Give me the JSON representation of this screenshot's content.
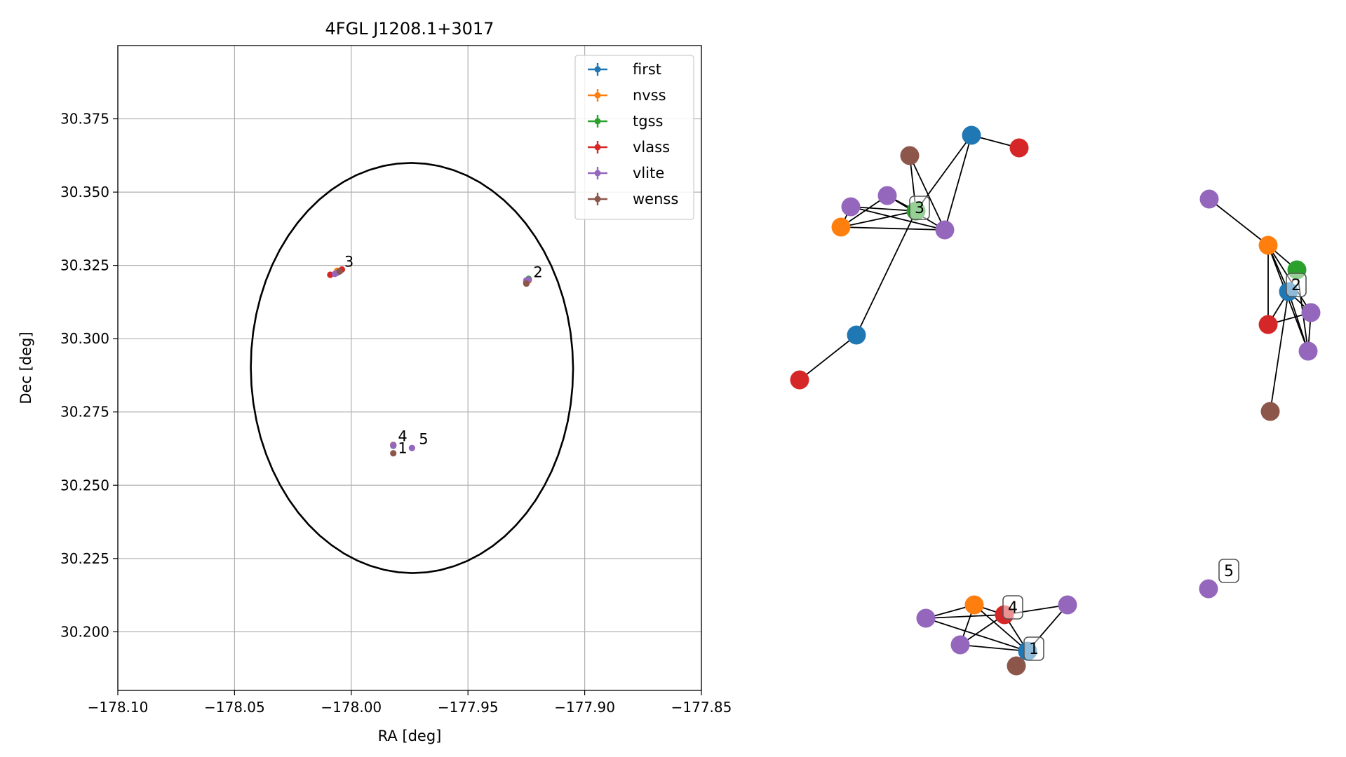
{
  "chart_data": [
    {
      "type": "scatter",
      "title": "4FGL J1208.1+3017",
      "xlabel": "RA [deg]",
      "ylabel": "Dec [deg]",
      "xlim": [
        -178.1,
        -177.85
      ],
      "ylim": [
        30.18,
        30.4
      ],
      "xticks": [
        -178.1,
        -178.05,
        -178.0,
        -177.95,
        -177.9,
        -177.85
      ],
      "xtick_labels": [
        "−178.10",
        "−178.05",
        "−178.00",
        "−177.95",
        "−177.90",
        "−177.85"
      ],
      "yticks": [
        30.2,
        30.225,
        30.25,
        30.275,
        30.3,
        30.325,
        30.35,
        30.375
      ],
      "ytick_labels": [
        "30.200",
        "30.225",
        "30.250",
        "30.275",
        "30.300",
        "30.325",
        "30.350",
        "30.375"
      ],
      "grid": true,
      "legend": "top-right",
      "ellipse": {
        "center": [
          -177.974,
          30.29
        ],
        "semi_axes": [
          0.069,
          0.07
        ],
        "angle_deg": 10
      },
      "series": [
        {
          "name": "first",
          "color": "#1f77b4",
          "points": [
            [
              -177.924,
              30.3202
            ],
            [
              -177.982,
              30.2635
            ],
            [
              -178.006,
              30.3229
            ]
          ]
        },
        {
          "name": "nvss",
          "color": "#ff7f0e",
          "points": [
            [
              -178.006,
              30.3232
            ],
            [
              -177.924,
              30.3198
            ],
            [
              -177.982,
              30.2638
            ]
          ]
        },
        {
          "name": "tgss",
          "color": "#2ca02c",
          "points": [
            [
              -178.005,
              30.3229
            ],
            [
              -177.924,
              30.3204
            ]
          ]
        },
        {
          "name": "vlass",
          "color": "#d62728",
          "points": [
            [
              -178.009,
              30.3218
            ],
            [
              -178.004,
              30.3236
            ],
            [
              -177.925,
              30.3195
            ],
            [
              -177.982,
              30.2636
            ]
          ]
        },
        {
          "name": "vlite",
          "color": "#9467bd",
          "points": [
            [
              -178.006,
              30.3225
            ],
            [
              -177.982,
              30.2637
            ],
            [
              -177.974,
              30.2627
            ],
            [
              -177.924,
              30.3201
            ],
            [
              -177.925,
              30.3199
            ],
            [
              -178.007,
              30.3221
            ]
          ]
        },
        {
          "name": "wenss",
          "color": "#8c564b",
          "points": [
            [
              -177.982,
              30.2609
            ],
            [
              -177.925,
              30.3188
            ],
            [
              -178.005,
              30.323
            ]
          ]
        }
      ],
      "annotations": [
        {
          "text": "1",
          "at": [
            -177.98,
            30.261
          ]
        },
        {
          "text": "2",
          "at": [
            -177.922,
            30.321
          ]
        },
        {
          "text": "3",
          "at": [
            -178.003,
            30.3245
          ]
        },
        {
          "text": "4",
          "at": [
            -177.98,
            30.265
          ]
        },
        {
          "text": "5",
          "at": [
            -177.971,
            30.264
          ]
        }
      ]
    },
    {
      "type": "network",
      "colors": {
        "first": "#1f77b4",
        "nvss": "#ff7f0e",
        "tgss": "#2ca02c",
        "vlass": "#d62728",
        "vlite": "#9467bd",
        "wenss": "#8c564b"
      },
      "labels": [
        "1",
        "2",
        "3",
        "4",
        "5"
      ]
    }
  ]
}
